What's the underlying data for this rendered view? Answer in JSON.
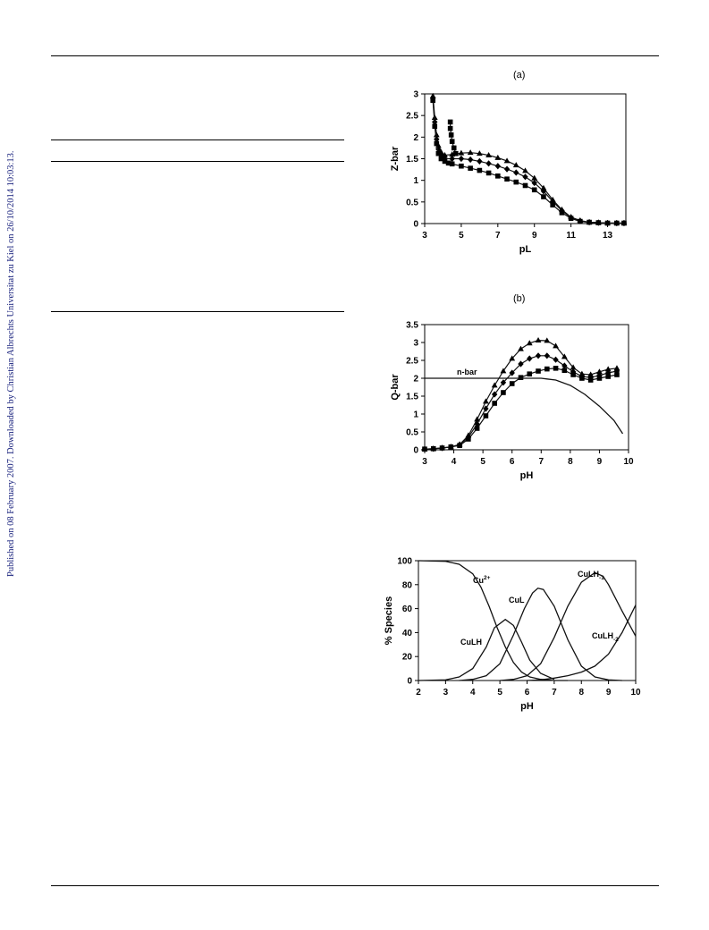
{
  "page": {
    "sidebar_text": "Published on 08 February 2007. Downloaded by Christian Albrechts Universitat zu Kiel on 26/10/2014 10:03:13."
  },
  "figures": {
    "a": {
      "label": "(a)"
    },
    "b": {
      "label": "(b)",
      "annotation": "n-bar"
    },
    "c": {
      "species_labels": {
        "cu": "Cu",
        "cu_sup": "2+",
        "cul": "CuL",
        "culh": "CuLH",
        "culhm1": "CuLH",
        "culhm1_sub": "-1",
        "culhm2": "CuLH",
        "culhm2_sub": "-2"
      }
    }
  },
  "chart_data": [
    {
      "id": "a",
      "type": "scatter",
      "title": "",
      "xlabel": "pL",
      "ylabel": "Z-bar",
      "xlim": [
        3,
        14
      ],
      "ylim": [
        0,
        3
      ],
      "xticks": [
        3,
        5,
        7,
        9,
        11,
        13
      ],
      "yticks": [
        0,
        0.5,
        1,
        1.5,
        2,
        2.5,
        3
      ],
      "series": [
        {
          "marker": "triangle",
          "x": [
            3.45,
            3.55,
            3.65,
            3.75,
            3.9,
            4.1,
            4.5,
            5,
            5.5,
            6,
            6.5,
            7,
            7.5,
            8,
            8.5,
            9,
            9.5,
            10,
            10.5,
            11,
            11.5,
            12,
            12.5,
            13,
            13.5,
            13.9
          ],
          "y": [
            2.95,
            2.45,
            2.05,
            1.8,
            1.65,
            1.58,
            1.6,
            1.63,
            1.64,
            1.62,
            1.58,
            1.52,
            1.45,
            1.35,
            1.22,
            1.05,
            0.82,
            0.55,
            0.32,
            0.15,
            0.07,
            0.03,
            0.02,
            0.01,
            0.01,
            0.01
          ]
        },
        {
          "marker": "diamond",
          "x": [
            3.45,
            3.55,
            3.65,
            3.75,
            3.9,
            4.1,
            4.5,
            5,
            5.5,
            6,
            6.5,
            7,
            7.5,
            8,
            8.5,
            9,
            9.5,
            10,
            10.5,
            11,
            11.5,
            12,
            12.5,
            13,
            13.5,
            13.9
          ],
          "y": [
            2.9,
            2.35,
            1.95,
            1.72,
            1.58,
            1.5,
            1.5,
            1.5,
            1.48,
            1.44,
            1.39,
            1.33,
            1.26,
            1.18,
            1.08,
            0.94,
            0.75,
            0.51,
            0.3,
            0.14,
            0.06,
            0.03,
            0.02,
            0.01,
            0.01,
            0.01
          ]
        },
        {
          "marker": "square",
          "x": [
            3.45,
            3.55,
            3.65,
            3.75,
            3.9,
            4.1,
            4.3,
            4.5,
            5,
            5.5,
            6,
            6.5,
            7,
            7.5,
            8,
            8.5,
            9,
            9.5,
            10,
            10.5,
            11,
            11.5,
            12,
            12.5,
            13,
            13.5,
            13.9
          ],
          "y": [
            2.85,
            2.25,
            1.85,
            1.62,
            1.5,
            1.44,
            1.4,
            1.38,
            1.33,
            1.28,
            1.23,
            1.17,
            1.1,
            1.03,
            0.96,
            0.88,
            0.78,
            0.62,
            0.43,
            0.25,
            0.12,
            0.05,
            0.03,
            0.02,
            0.01,
            0.01,
            0.01
          ]
        },
        {
          "marker": "square",
          "x": [
            4.4,
            4.4,
            4.45,
            4.5,
            4.6,
            4.7
          ],
          "y": [
            2.35,
            2.2,
            2.05,
            1.9,
            1.75,
            1.62
          ]
        }
      ]
    },
    {
      "id": "b",
      "type": "scatter",
      "title": "",
      "xlabel": "pH",
      "ylabel": "Q-bar",
      "xlim": [
        3,
        10
      ],
      "ylim": [
        0,
        3.5
      ],
      "xticks": [
        3,
        4,
        5,
        6,
        7,
        8,
        9,
        10
      ],
      "yticks": [
        0,
        0.5,
        1,
        1.5,
        2,
        2.5,
        3,
        3.5
      ],
      "series": [
        {
          "marker": "triangle",
          "x": [
            3,
            3.3,
            3.6,
            3.9,
            4.2,
            4.5,
            4.8,
            5.1,
            5.4,
            5.7,
            6,
            6.3,
            6.6,
            6.9,
            7.2,
            7.5,
            7.8,
            8.1,
            8.4,
            8.7,
            9,
            9.3,
            9.6
          ],
          "y": [
            0.02,
            0.03,
            0.05,
            0.08,
            0.15,
            0.4,
            0.85,
            1.35,
            1.8,
            2.2,
            2.55,
            2.82,
            2.98,
            3.06,
            3.05,
            2.9,
            2.6,
            2.3,
            2.12,
            2.1,
            2.18,
            2.25,
            2.28
          ]
        },
        {
          "marker": "diamond",
          "x": [
            3,
            3.3,
            3.6,
            3.9,
            4.2,
            4.5,
            4.8,
            5.1,
            5.4,
            5.7,
            6,
            6.3,
            6.6,
            6.9,
            7.2,
            7.5,
            7.8,
            8.1,
            8.4,
            8.7,
            9,
            9.3,
            9.6
          ],
          "y": [
            0.02,
            0.03,
            0.05,
            0.08,
            0.14,
            0.35,
            0.72,
            1.15,
            1.55,
            1.88,
            2.15,
            2.4,
            2.55,
            2.63,
            2.63,
            2.52,
            2.35,
            2.18,
            2.05,
            2.02,
            2.08,
            2.15,
            2.2
          ]
        },
        {
          "marker": "square",
          "x": [
            3,
            3.3,
            3.6,
            3.9,
            4.2,
            4.5,
            4.8,
            5.1,
            5.4,
            5.7,
            6,
            6.3,
            6.6,
            6.9,
            7.2,
            7.5,
            7.8,
            8.1,
            8.4,
            8.7,
            9,
            9.3,
            9.6
          ],
          "y": [
            0.02,
            0.03,
            0.05,
            0.08,
            0.12,
            0.3,
            0.6,
            0.95,
            1.3,
            1.6,
            1.85,
            2.02,
            2.12,
            2.2,
            2.26,
            2.28,
            2.22,
            2.1,
            2,
            1.95,
            2,
            2.05,
            2.1
          ]
        },
        {
          "marker": "none",
          "name": "n-bar",
          "x": [
            3,
            3.5,
            4,
            4.5,
            5,
            5.5,
            6,
            6.5,
            7,
            7.2,
            7.5,
            8,
            8.5,
            9,
            9.5,
            9.8
          ],
          "y": [
            2,
            2,
            2,
            2,
            2,
            2,
            2,
            2,
            2,
            1.98,
            1.95,
            1.8,
            1.55,
            1.22,
            0.82,
            0.45
          ]
        }
      ]
    },
    {
      "id": "c",
      "type": "line",
      "title": "",
      "xlabel": "pH",
      "ylabel": "% Species",
      "xlim": [
        2,
        10
      ],
      "ylim": [
        0,
        100
      ],
      "xticks": [
        2,
        3,
        4,
        5,
        6,
        7,
        8,
        9,
        10
      ],
      "yticks": [
        0,
        20,
        40,
        60,
        80,
        100
      ],
      "series": [
        {
          "x": [
            2,
            3,
            3.5,
            4,
            4.3,
            4.6,
            4.9,
            5.2,
            5.5,
            5.8,
            6.1,
            6.5,
            7,
            7.5
          ],
          "y": [
            100,
            99.5,
            97,
            89,
            78,
            62,
            44,
            28,
            15,
            7,
            3,
            1,
            0,
            0
          ]
        },
        {
          "x": [
            2,
            3,
            3.5,
            4,
            4.5,
            4.8,
            5.2,
            5.5,
            5.8,
            6.1,
            6.5,
            7
          ],
          "y": [
            0,
            0.5,
            3,
            10,
            28,
            44,
            51,
            46,
            32,
            17,
            6,
            1
          ]
        },
        {
          "x": [
            3.5,
            4,
            4.5,
            5,
            5.5,
            5.9,
            6.2,
            6.4,
            6.6,
            7,
            7.5,
            8,
            8.5,
            9,
            9.5
          ],
          "y": [
            0,
            1,
            4,
            14,
            38,
            60,
            73,
            77,
            76,
            62,
            34,
            12,
            3,
            0.5,
            0
          ]
        },
        {
          "x": [
            5,
            5.5,
            6,
            6.5,
            7,
            7.5,
            8,
            8.5,
            8.8,
            9,
            9.5,
            10
          ],
          "y": [
            0,
            1,
            4,
            14,
            36,
            62,
            82,
            90,
            87,
            80,
            58,
            37
          ]
        },
        {
          "x": [
            6,
            6.5,
            7,
            7.5,
            8,
            8.5,
            9,
            9.5,
            10
          ],
          "y": [
            0,
            0.5,
            2,
            4,
            7,
            12,
            22,
            40,
            63
          ]
        }
      ]
    }
  ]
}
